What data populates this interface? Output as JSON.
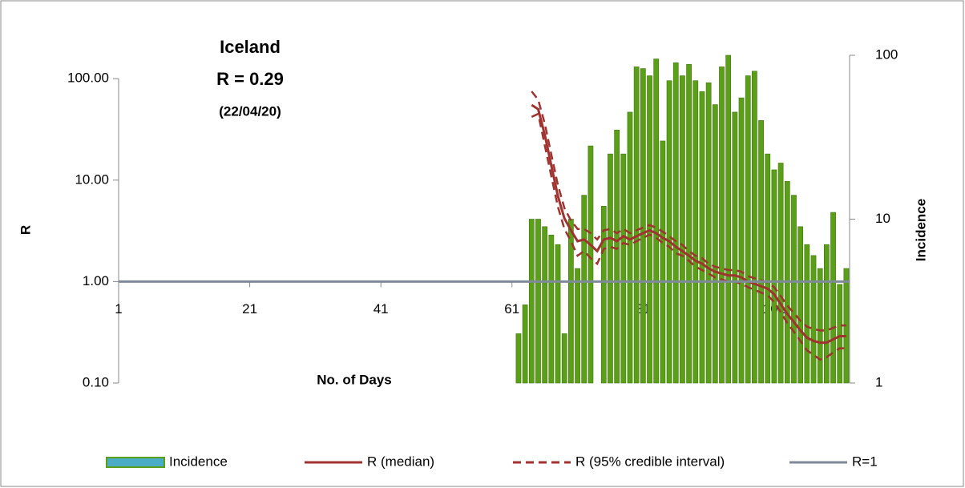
{
  "chart_data": {
    "type": "bar_line",
    "annotations": [
      "Iceland",
      "R = 0.29",
      "(22/04/20)"
    ],
    "xlabel": "No. of Days",
    "ylabel": "R",
    "y2label": "Incidence",
    "xlim": [
      1,
      112.5
    ],
    "xticks": [
      1,
      21,
      41,
      61,
      81,
      101
    ],
    "ylim": [
      0.1,
      170
    ],
    "yscale": "log",
    "yticks": [
      {
        "value": 0.1,
        "label": "0.10"
      },
      {
        "value": 1,
        "label": "1.00"
      },
      {
        "value": 10,
        "label": "10.00"
      },
      {
        "value": 100,
        "label": "100.00"
      }
    ],
    "y2lim": [
      1,
      100
    ],
    "y2scale": "log",
    "y2ticks": [
      1,
      10,
      100
    ],
    "legend": "bottom",
    "series": [
      {
        "name": "Incidence",
        "kind": "bar",
        "axis": "y2",
        "color": "#5b9e17",
        "edge": "#3f7a0c",
        "legend_color": "#4bacc6",
        "x": [
          62,
          63,
          64,
          65,
          66,
          67,
          68,
          69,
          70,
          71,
          72,
          73,
          74,
          75,
          76,
          77,
          78,
          79,
          80,
          81,
          82,
          83,
          84,
          85,
          86,
          87,
          88,
          89,
          90,
          91,
          92,
          93,
          94,
          95,
          96,
          97,
          98,
          99,
          100,
          101,
          102,
          103,
          104,
          105,
          106,
          107,
          108,
          109,
          110,
          111,
          112
        ],
        "values": [
          2,
          3,
          10,
          10,
          9,
          8,
          7,
          2,
          10,
          5,
          14,
          28,
          null,
          12,
          25,
          35,
          25,
          45,
          85,
          83,
          75,
          95,
          30,
          70,
          90,
          75,
          88,
          70,
          60,
          68,
          50,
          85,
          100,
          45,
          55,
          75,
          80,
          40,
          25,
          20,
          22,
          17,
          14,
          9,
          7,
          6,
          5,
          7,
          11,
          4,
          5
        ]
      },
      {
        "name": "R (median)",
        "kind": "line",
        "color": "#a0332f",
        "x": [
          64,
          65,
          66,
          67,
          68,
          69,
          70,
          71,
          72,
          73,
          74,
          75,
          76,
          77,
          78,
          79,
          80,
          81,
          82,
          83,
          84,
          85,
          86,
          87,
          88,
          89,
          90,
          91,
          92,
          93,
          94,
          95,
          96,
          97,
          98,
          99,
          100,
          101,
          102,
          103,
          104,
          105,
          106,
          107,
          108,
          109,
          110,
          111,
          112
        ],
        "values": [
          55,
          50,
          28,
          14,
          7,
          4.2,
          3.2,
          2.5,
          2.6,
          2.3,
          2.0,
          2.6,
          2.7,
          2.5,
          2.8,
          2.6,
          2.8,
          3.0,
          3.2,
          3.0,
          2.7,
          2.5,
          2.2,
          2.0,
          1.8,
          1.6,
          1.5,
          1.35,
          1.25,
          1.2,
          1.15,
          1.15,
          1.1,
          1.0,
          0.95,
          0.9,
          0.85,
          0.75,
          0.6,
          0.48,
          0.4,
          0.33,
          0.28,
          0.26,
          0.25,
          0.25,
          0.27,
          0.29,
          0.29
        ]
      },
      {
        "name": "R (95% credible interval)",
        "kind": "band",
        "color": "#a0332f",
        "x": [
          64,
          65,
          66,
          67,
          68,
          69,
          70,
          71,
          72,
          73,
          74,
          75,
          76,
          77,
          78,
          79,
          80,
          81,
          82,
          83,
          84,
          85,
          86,
          87,
          88,
          89,
          90,
          91,
          92,
          93,
          94,
          95,
          96,
          97,
          98,
          99,
          100,
          101,
          102,
          103,
          104,
          105,
          106,
          107,
          108,
          109,
          110,
          111,
          112
        ],
        "lower": [
          42,
          45,
          22,
          11,
          5.5,
          3.3,
          2.5,
          1.8,
          2.0,
          1.7,
          1.5,
          2.1,
          2.2,
          2.1,
          2.4,
          2.3,
          2.5,
          2.7,
          2.9,
          2.7,
          2.4,
          2.2,
          1.9,
          1.8,
          1.6,
          1.4,
          1.3,
          1.2,
          1.1,
          1.05,
          1.0,
          1.0,
          0.95,
          0.88,
          0.83,
          0.78,
          0.73,
          0.63,
          0.5,
          0.39,
          0.32,
          0.26,
          0.21,
          0.19,
          0.17,
          0.18,
          0.2,
          0.22,
          0.22
        ],
        "upper": [
          75,
          62,
          36,
          18,
          9,
          5.3,
          4.0,
          3.3,
          3.3,
          3.0,
          2.6,
          3.2,
          3.3,
          3.0,
          3.3,
          3.0,
          3.2,
          3.4,
          3.6,
          3.4,
          3.1,
          2.8,
          2.5,
          2.3,
          2.0,
          1.8,
          1.7,
          1.5,
          1.4,
          1.35,
          1.3,
          1.3,
          1.25,
          1.13,
          1.08,
          1.03,
          0.98,
          0.88,
          0.72,
          0.58,
          0.49,
          0.41,
          0.36,
          0.34,
          0.33,
          0.33,
          0.35,
          0.37,
          0.37
        ]
      },
      {
        "name": "R=1",
        "kind": "line",
        "color": "#7e8a9a",
        "x": [
          1,
          112.5
        ],
        "values": [
          1,
          1
        ]
      }
    ]
  }
}
